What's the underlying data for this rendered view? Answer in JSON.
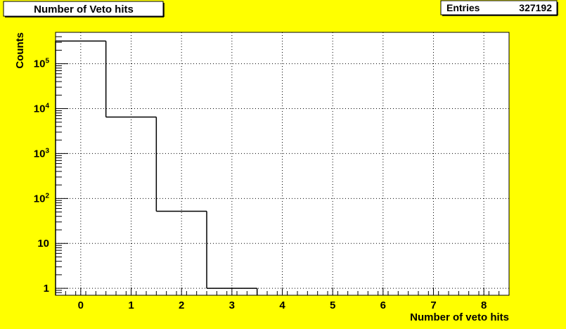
{
  "chart_data": {
    "type": "histogram",
    "title": "Number of Veto hits",
    "xlabel": "Number of veto hits",
    "ylabel": "Counts",
    "y_scale": "log",
    "xlim": [
      -0.5,
      8.5
    ],
    "ylim": [
      0.7,
      500000
    ],
    "bin_width": 1,
    "bins": [
      {
        "center": 0,
        "value": 320000
      },
      {
        "center": 1,
        "value": 6500
      },
      {
        "center": 2,
        "value": 52
      },
      {
        "center": 3,
        "value": 1
      }
    ],
    "x_ticks": [
      {
        "value": 0,
        "label": "0"
      },
      {
        "value": 1,
        "label": "1"
      },
      {
        "value": 2,
        "label": "2"
      },
      {
        "value": 3,
        "label": "3"
      },
      {
        "value": 4,
        "label": "4"
      },
      {
        "value": 5,
        "label": "5"
      },
      {
        "value": 6,
        "label": "6"
      },
      {
        "value": 7,
        "label": "7"
      },
      {
        "value": 8,
        "label": "8"
      }
    ],
    "y_ticks": [
      {
        "value": 1,
        "base": "1",
        "exp": ""
      },
      {
        "value": 10,
        "base": "10",
        "exp": ""
      },
      {
        "value": 100,
        "base": "10",
        "exp": "2"
      },
      {
        "value": 1000,
        "base": "10",
        "exp": "3"
      },
      {
        "value": 10000,
        "base": "10",
        "exp": "4"
      },
      {
        "value": 100000,
        "base": "10",
        "exp": "5"
      }
    ],
    "stats": {
      "label": "Entries",
      "value": "327192"
    },
    "grid": true,
    "colors": {
      "canvas": "#ffff00",
      "frame": "#ffffff",
      "line": "#000000"
    }
  }
}
